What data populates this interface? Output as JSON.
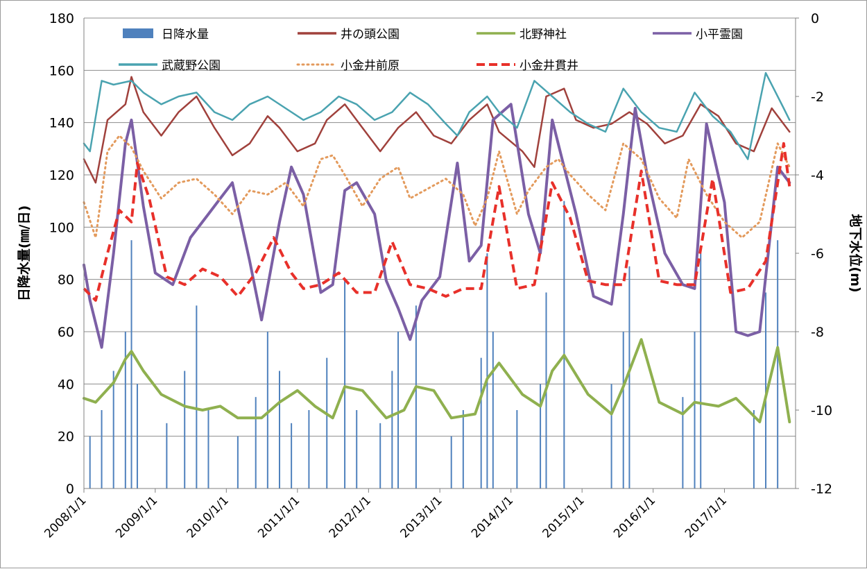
{
  "chart_data": {
    "type": "line",
    "title": "",
    "ylabel_left": "日降水量(㎜/日)",
    "ylabel_right": "地下水位(m)",
    "ylim_left": [
      0,
      180
    ],
    "ylim_right": [
      -12,
      0
    ],
    "yticks_left": [
      "0",
      "20",
      "40",
      "60",
      "80",
      "100",
      "120",
      "140",
      "160",
      "180"
    ],
    "yticks_right": [
      "-12",
      "-10",
      "-8",
      "-6",
      "-4",
      "-2",
      "0"
    ],
    "xlim": [
      "2008/1/1",
      "2018/1/1"
    ],
    "xticks": [
      "2008/1/1",
      "2009/1/1",
      "2010/1/1",
      "2011/1/1",
      "2012/1/1",
      "2013/1/1",
      "2014/1/1",
      "2015/1/1",
      "2016/1/1",
      "2017/1/1"
    ],
    "grid": true,
    "legend_position": "top",
    "series": [
      {
        "name": "日降水量",
        "axis": "left",
        "kind": "bar",
        "color": "#4f81bd",
        "x": [
          "2008/2",
          "2008/4",
          "2008/6",
          "2008/8",
          "2008/9",
          "2008/10",
          "2009/3",
          "2009/6",
          "2009/8",
          "2009/10",
          "2010/3",
          "2010/6",
          "2010/8",
          "2010/10",
          "2010/12",
          "2011/3",
          "2011/6",
          "2011/9",
          "2011/11",
          "2012/3",
          "2012/5",
          "2012/6",
          "2012/9",
          "2013/3",
          "2013/5",
          "2013/8",
          "2013/9",
          "2013/10",
          "2014/2",
          "2014/6",
          "2014/7",
          "2014/10",
          "2015/6",
          "2015/8",
          "2015/9",
          "2016/6",
          "2016/8",
          "2016/9",
          "2017/6",
          "2017/8",
          "2017/10"
        ],
        "y": [
          20,
          30,
          45,
          60,
          95,
          40,
          25,
          45,
          70,
          30,
          20,
          35,
          60,
          45,
          25,
          30,
          50,
          80,
          30,
          25,
          45,
          60,
          70,
          20,
          30,
          50,
          90,
          60,
          30,
          40,
          75,
          110,
          40,
          60,
          85,
          35,
          60,
          90,
          30,
          75,
          95
        ]
      },
      {
        "name": "井の頭公園",
        "axis": "right",
        "kind": "line",
        "color": "#a0413c",
        "x": [
          "2008/1",
          "2008/3",
          "2008/5",
          "2008/8",
          "2008/9",
          "2008/11",
          "2009/2",
          "2009/5",
          "2009/8",
          "2009/11",
          "2010/2",
          "2010/5",
          "2010/8",
          "2010/10",
          "2011/1",
          "2011/4",
          "2011/6",
          "2011/9",
          "2011/12",
          "2012/3",
          "2012/6",
          "2012/9",
          "2012/12",
          "2013/3",
          "2013/6",
          "2013/9",
          "2013/11",
          "2014/3",
          "2014/5",
          "2014/7",
          "2014/10",
          "2014/12",
          "2015/3",
          "2015/6",
          "2015/9",
          "2015/12",
          "2016/3",
          "2016/6",
          "2016/9",
          "2016/12",
          "2017/3",
          "2017/6",
          "2017/9",
          "2017/12"
        ],
        "y": [
          -3.6,
          -4.2,
          -2.6,
          -2.2,
          -1.5,
          -2.4,
          -3.0,
          -2.4,
          -2.0,
          -2.8,
          -3.5,
          -3.2,
          -2.5,
          -2.8,
          -3.4,
          -3.2,
          -2.6,
          -2.2,
          -2.8,
          -3.4,
          -2.8,
          -2.4,
          -3.0,
          -3.2,
          -2.6,
          -2.2,
          -2.9,
          -3.4,
          -3.8,
          -2.0,
          -1.8,
          -2.6,
          -2.8,
          -2.7,
          -2.4,
          -2.7,
          -3.2,
          -3.0,
          -2.2,
          -2.5,
          -3.2,
          -3.4,
          -2.3,
          -2.9
        ]
      },
      {
        "name": "北野神社",
        "axis": "right",
        "kind": "line",
        "color": "#8fb04f",
        "x": [
          "2008/1",
          "2008/3",
          "2008/6",
          "2008/8",
          "2008/9",
          "2008/11",
          "2009/2",
          "2009/6",
          "2009/9",
          "2009/12",
          "2010/3",
          "2010/7",
          "2010/10",
          "2011/1",
          "2011/4",
          "2011/7",
          "2011/9",
          "2011/12",
          "2012/4",
          "2012/7",
          "2012/9",
          "2012/12",
          "2013/3",
          "2013/7",
          "2013/9",
          "2013/11",
          "2014/3",
          "2014/6",
          "2014/8",
          "2014/10",
          "2015/2",
          "2015/6",
          "2015/8",
          "2015/11",
          "2016/2",
          "2016/6",
          "2016/8",
          "2016/12",
          "2017/3",
          "2017/7",
          "2017/10",
          "2017/12"
        ],
        "y": [
          -9.7,
          -9.8,
          -9.3,
          -8.7,
          -8.5,
          -9.0,
          -9.6,
          -9.9,
          -10.0,
          -9.9,
          -10.2,
          -10.2,
          -9.8,
          -9.5,
          -9.9,
          -10.2,
          -9.4,
          -9.5,
          -10.2,
          -10.0,
          -9.4,
          -9.5,
          -10.2,
          -10.1,
          -9.2,
          -8.8,
          -9.6,
          -9.9,
          -9.0,
          -8.6,
          -9.6,
          -10.1,
          -9.4,
          -8.2,
          -9.8,
          -10.1,
          -9.8,
          -9.9,
          -9.7,
          -10.3,
          -8.4,
          -10.3
        ]
      },
      {
        "name": "小平霊園",
        "axis": "right",
        "kind": "line",
        "color": "#7b5fa5",
        "x": [
          "2008/1",
          "2008/2",
          "2008/4",
          "2008/6",
          "2008/8",
          "2008/9",
          "2008/11",
          "2009/1",
          "2009/4",
          "2009/7",
          "2009/10",
          "2009/12",
          "2010/2",
          "2010/5",
          "2010/7",
          "2010/10",
          "2010/12",
          "2011/2",
          "2011/5",
          "2011/7",
          "2011/9",
          "2011/11",
          "2012/2",
          "2012/4",
          "2012/6",
          "2012/8",
          "2012/10",
          "2013/1",
          "2013/4",
          "2013/6",
          "2013/8",
          "2013/10",
          "2014/1",
          "2014/4",
          "2014/6",
          "2014/8",
          "2014/10",
          "2014/12",
          "2015/3",
          "2015/6",
          "2015/8",
          "2015/10",
          "2015/12",
          "2016/3",
          "2016/6",
          "2016/8",
          "2016/10",
          "2017/1",
          "2017/3",
          "2017/5",
          "2017/7",
          "2017/10",
          "2017/12"
        ],
        "y": [
          -6.3,
          -7.2,
          -8.4,
          -6.0,
          -3.2,
          -2.6,
          -4.8,
          -6.5,
          -6.8,
          -5.6,
          -5.0,
          -4.6,
          -4.2,
          -6.2,
          -7.7,
          -5.2,
          -3.8,
          -4.5,
          -7.0,
          -6.8,
          -4.4,
          -4.2,
          -5.0,
          -6.7,
          -7.4,
          -8.2,
          -7.2,
          -6.6,
          -3.7,
          -6.2,
          -5.8,
          -2.6,
          -2.2,
          -5.0,
          -6.0,
          -2.6,
          -3.8,
          -5.0,
          -7.1,
          -7.3,
          -5.0,
          -2.3,
          -4.0,
          -6.0,
          -6.8,
          -6.9,
          -2.7,
          -4.7,
          -8.0,
          -8.1,
          -8.0,
          -3.8,
          -4.2
        ]
      },
      {
        "name": "武蔵野公園",
        "axis": "right",
        "kind": "line",
        "color": "#4aa3b0",
        "x": [
          "2008/1",
          "2008/2",
          "2008/4",
          "2008/6",
          "2008/9",
          "2008/11",
          "2009/2",
          "2009/5",
          "2009/8",
          "2009/11",
          "2010/2",
          "2010/5",
          "2010/8",
          "2010/11",
          "2011/2",
          "2011/5",
          "2011/8",
          "2011/11",
          "2012/2",
          "2012/5",
          "2012/8",
          "2012/11",
          "2013/2",
          "2013/4",
          "2013/6",
          "2013/9",
          "2013/11",
          "2014/2",
          "2014/5",
          "2014/8",
          "2014/11",
          "2015/2",
          "2015/5",
          "2015/8",
          "2015/11",
          "2016/2",
          "2016/5",
          "2016/8",
          "2016/11",
          "2017/2",
          "2017/5",
          "2017/8",
          "2017/11",
          "2017/12"
        ],
        "y": [
          -3.2,
          -3.4,
          -1.6,
          -1.7,
          -1.6,
          -1.9,
          -2.2,
          -2.0,
          -1.9,
          -2.4,
          -2.6,
          -2.2,
          -2.0,
          -2.3,
          -2.6,
          -2.4,
          -2.0,
          -2.2,
          -2.6,
          -2.4,
          -1.9,
          -2.2,
          -2.7,
          -3.0,
          -2.4,
          -2.0,
          -2.4,
          -2.8,
          -1.6,
          -2.0,
          -2.4,
          -2.7,
          -2.9,
          -1.8,
          -2.4,
          -2.8,
          -2.9,
          -1.9,
          -2.5,
          -2.9,
          -3.6,
          -1.4,
          -2.3,
          -2.6
        ]
      },
      {
        "name": "小金井前原",
        "axis": "right",
        "kind": "line-dotted",
        "color": "#e39a5c",
        "x": [
          "2008/1",
          "2008/3",
          "2008/5",
          "2008/7",
          "2008/9",
          "2008/11",
          "2009/2",
          "2009/5",
          "2009/8",
          "2009/11",
          "2010/2",
          "2010/5",
          "2010/8",
          "2010/11",
          "2011/2",
          "2011/5",
          "2011/7",
          "2011/9",
          "2011/12",
          "2012/3",
          "2012/6",
          "2012/8",
          "2013/2",
          "2013/5",
          "2013/7",
          "2013/9",
          "2013/11",
          "2014/2",
          "2014/4",
          "2014/7",
          "2014/9",
          "2014/11",
          "2015/2",
          "2015/5",
          "2015/8",
          "2015/11",
          "2016/2",
          "2016/5",
          "2016/7",
          "2016/10",
          "2017/1",
          "2017/4",
          "2017/7",
          "2017/10",
          "2017/12"
        ],
        "y": [
          -4.7,
          -5.6,
          -3.4,
          -3.0,
          -3.3,
          -3.9,
          -4.6,
          -4.2,
          -4.1,
          -4.5,
          -5.0,
          -4.4,
          -4.5,
          -4.2,
          -4.8,
          -3.6,
          -3.5,
          -4.0,
          -4.8,
          -4.1,
          -3.8,
          -4.6,
          -4.1,
          -4.5,
          -5.3,
          -4.6,
          -3.4,
          -5.0,
          -4.4,
          -3.8,
          -3.6,
          -4.0,
          -4.5,
          -4.9,
          -3.2,
          -3.6,
          -4.6,
          -5.1,
          -3.6,
          -4.5,
          -5.2,
          -5.6,
          -5.2,
          -3.2,
          -3.8
        ]
      },
      {
        "name": "小金井貫井",
        "axis": "right",
        "kind": "line-dashed",
        "color": "#e8302a",
        "x": [
          "2008/1",
          "2008/3",
          "2008/5",
          "2008/7",
          "2008/9",
          "2008/10",
          "2008/12",
          "2009/3",
          "2009/6",
          "2009/9",
          "2009/12",
          "2010/3",
          "2010/6",
          "2010/9",
          "2010/12",
          "2011/2",
          "2011/5",
          "2011/8",
          "2011/11",
          "2012/2",
          "2012/5",
          "2012/8",
          "2012/11",
          "2013/2",
          "2013/5",
          "2013/8",
          "2013/11",
          "2014/2",
          "2014/5",
          "2014/8",
          "2014/11",
          "2015/2",
          "2015/5",
          "2015/8",
          "2015/11",
          "2016/2",
          "2016/5",
          "2016/8",
          "2016/11",
          "2017/2",
          "2017/5",
          "2017/8",
          "2017/11",
          "2017/12"
        ],
        "y": [
          -6.9,
          -7.2,
          -6.0,
          -4.9,
          -5.2,
          -3.7,
          -4.6,
          -6.6,
          -6.8,
          -6.4,
          -6.6,
          -7.1,
          -6.5,
          -5.6,
          -6.5,
          -6.9,
          -6.8,
          -6.5,
          -7.0,
          -7.0,
          -5.7,
          -6.8,
          -6.9,
          -7.1,
          -6.9,
          -6.9,
          -4.3,
          -6.9,
          -6.8,
          -4.2,
          -5.1,
          -6.7,
          -6.8,
          -6.8,
          -3.9,
          -6.7,
          -6.8,
          -6.8,
          -4.1,
          -7.0,
          -6.9,
          -6.2,
          -3.2,
          -4.3
        ]
      }
    ]
  }
}
